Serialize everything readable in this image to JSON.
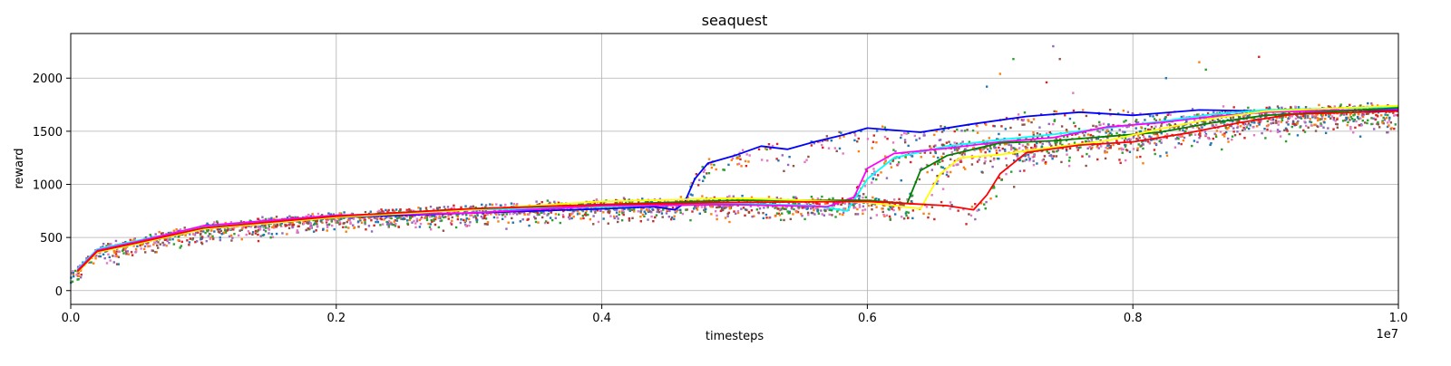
{
  "chart_data": {
    "type": "scatter",
    "title": "seaquest",
    "xlabel": "timesteps",
    "ylabel": "reward",
    "x_offset_text": "1e7",
    "xlim": [
      0,
      1.0
    ],
    "ylim": [
      -130,
      2420
    ],
    "xticks": [
      0.0,
      0.2,
      0.4,
      0.6,
      0.8,
      1.0
    ],
    "xtick_labels": [
      "0.0",
      "0.2",
      "0.4",
      "0.6",
      "0.8",
      "1.0"
    ],
    "yticks": [
      0,
      500,
      1000,
      1500,
      2000
    ],
    "ytick_labels": [
      "0",
      "500",
      "1000",
      "1500",
      "2000"
    ],
    "grid": true,
    "scatter_colors": [
      "#1f77b4",
      "#ff7f0e",
      "#2ca02c",
      "#d62728",
      "#9467bd",
      "#8c564b",
      "#e377c2"
    ],
    "series": [
      {
        "color": "#0000ff",
        "x": [
          0.005,
          0.02,
          0.05,
          0.1,
          0.2,
          0.3,
          0.4,
          0.44,
          0.455,
          0.462,
          0.47,
          0.48,
          0.5,
          0.52,
          0.54,
          0.56,
          0.58,
          0.6,
          0.64,
          0.68,
          0.72,
          0.76,
          0.8,
          0.85,
          0.9,
          1.0
        ],
        "y": [
          180,
          380,
          450,
          580,
          690,
          730,
          770,
          790,
          760,
          820,
          1050,
          1200,
          1270,
          1360,
          1330,
          1400,
          1460,
          1530,
          1490,
          1570,
          1640,
          1680,
          1650,
          1700,
          1690,
          1700
        ]
      },
      {
        "color": "#00ffff",
        "x": [
          0.005,
          0.02,
          0.05,
          0.1,
          0.2,
          0.3,
          0.4,
          0.5,
          0.56,
          0.585,
          0.6,
          0.62,
          0.66,
          0.7,
          0.74,
          0.78,
          0.82,
          0.86,
          0.9,
          1.0
        ],
        "y": [
          200,
          390,
          470,
          600,
          700,
          760,
          790,
          820,
          800,
          750,
          1050,
          1250,
          1360,
          1420,
          1470,
          1530,
          1590,
          1660,
          1700,
          1730
        ]
      },
      {
        "color": "#ff00ff",
        "x": [
          0.005,
          0.02,
          0.05,
          0.1,
          0.2,
          0.3,
          0.4,
          0.5,
          0.57,
          0.59,
          0.6,
          0.62,
          0.66,
          0.7,
          0.74,
          0.78,
          0.82,
          0.86,
          0.9,
          1.0
        ],
        "y": [
          190,
          380,
          460,
          610,
          710,
          730,
          800,
          810,
          790,
          880,
          1150,
          1290,
          1340,
          1400,
          1440,
          1540,
          1580,
          1640,
          1680,
          1710
        ]
      },
      {
        "color": "#008000",
        "x": [
          0.005,
          0.02,
          0.05,
          0.1,
          0.2,
          0.3,
          0.4,
          0.5,
          0.6,
          0.63,
          0.64,
          0.66,
          0.7,
          0.74,
          0.78,
          0.82,
          0.86,
          0.9,
          1.0
        ],
        "y": [
          180,
          370,
          450,
          590,
          700,
          770,
          810,
          850,
          850,
          820,
          1130,
          1270,
          1390,
          1410,
          1450,
          1490,
          1580,
          1650,
          1720
        ]
      },
      {
        "color": "#ffff00",
        "x": [
          0.005,
          0.02,
          0.05,
          0.1,
          0.2,
          0.3,
          0.4,
          0.5,
          0.6,
          0.64,
          0.655,
          0.67,
          0.7,
          0.74,
          0.78,
          0.82,
          0.86,
          0.9,
          1.0
        ],
        "y": [
          170,
          360,
          440,
          580,
          690,
          760,
          840,
          870,
          830,
          770,
          1100,
          1250,
          1280,
          1350,
          1410,
          1520,
          1620,
          1690,
          1740
        ]
      },
      {
        "color": "#ff0000",
        "x": [
          0.005,
          0.02,
          0.05,
          0.1,
          0.2,
          0.3,
          0.4,
          0.5,
          0.6,
          0.66,
          0.68,
          0.69,
          0.7,
          0.72,
          0.76,
          0.8,
          0.84,
          0.88,
          0.92,
          1.0
        ],
        "y": [
          180,
          370,
          450,
          590,
          700,
          770,
          810,
          830,
          840,
          800,
          760,
          900,
          1100,
          1300,
          1370,
          1400,
          1480,
          1580,
          1660,
          1690
        ]
      }
    ]
  }
}
